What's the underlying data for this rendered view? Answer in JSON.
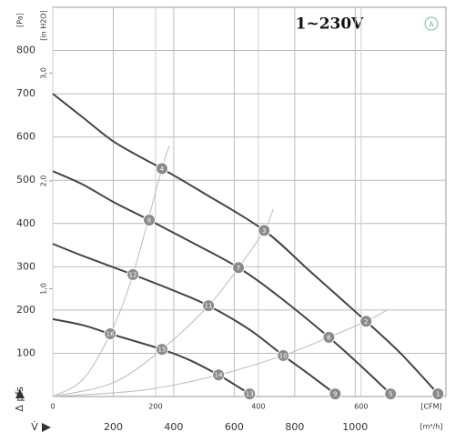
{
  "chart_data": {
    "type": "line",
    "title": "1~230V",
    "badge": "A",
    "y_unit": "[Pa]",
    "y2_unit": "[in H2O]",
    "y_label": "Δ pfs",
    "x_label": "V̇",
    "x_unit": "[m³/h]",
    "x2_unit": "[CFM]",
    "xlim": [
      0,
      1300
    ],
    "xticks": [
      200,
      400,
      600,
      800,
      1000
    ],
    "x2lim": [
      0,
      765
    ],
    "x2ticks": [
      0,
      200,
      400,
      600
    ],
    "ylim": [
      0,
      900
    ],
    "yticks": [
      100,
      200,
      300,
      400,
      500,
      600,
      700,
      800
    ],
    "y2lim": [
      0,
      3.61
    ],
    "y2ticks": [
      {
        "value": 1,
        "label": "1,0"
      },
      {
        "value": 2,
        "label": "2,0"
      },
      {
        "value": 3,
        "label": "3,0"
      }
    ],
    "grid": true,
    "series": [
      {
        "color": "#444444",
        "x": [
          0,
          100,
          200,
          300,
          361,
          500,
          699,
          850,
          1036,
          1150,
          1274
        ],
        "values": [
          700,
          645,
          590,
          550,
          527,
          470,
          384,
          290,
          174,
          100,
          6
        ]
      },
      {
        "color": "#444444",
        "x": [
          0,
          100,
          200,
          319,
          450,
          614,
          750,
          913,
          1020,
          1117
        ],
        "values": [
          521,
          490,
          450,
          408,
          360,
          298,
          230,
          137,
          70,
          6
        ]
      },
      {
        "color": "#444444",
        "x": [
          0,
          100,
          265,
          400,
          515,
          650,
          762,
          850,
          934
        ],
        "values": [
          353,
          325,
          282,
          245,
          210,
          155,
          95,
          50,
          6
        ]
      },
      {
        "color": "#444444",
        "x": [
          0,
          100,
          190,
          361,
          450,
          548,
          600,
          651
        ],
        "values": [
          179,
          165,
          145,
          109,
          85,
          50,
          28,
          6
        ]
      },
      {
        "color": "#bbbbbb",
        "x": [
          0,
          100,
          190,
          265,
          361,
          386
        ],
        "values": [
          0,
          40,
          145,
          282,
          527,
          580
        ]
      },
      {
        "color": "#bbbbbb",
        "x": [
          0,
          200,
          361,
          515,
          614,
          699,
          729
        ],
        "values": [
          0,
          32,
          109,
          210,
          298,
          384,
          433
        ]
      },
      {
        "color": "#bbbbbb",
        "x": [
          0,
          300,
          548,
          762,
          913,
          1036,
          1105
        ],
        "values": [
          0,
          15,
          50,
          95,
          137,
          174,
          200
        ]
      }
    ],
    "points": [
      {
        "label": 1,
        "x": 1274,
        "y": 6
      },
      {
        "label": 2,
        "x": 1036,
        "y": 174
      },
      {
        "label": 3,
        "x": 699,
        "y": 384
      },
      {
        "label": 4,
        "x": 361,
        "y": 527
      },
      {
        "label": 5,
        "x": 1117,
        "y": 6
      },
      {
        "label": 6,
        "x": 913,
        "y": 137
      },
      {
        "label": 7,
        "x": 614,
        "y": 298
      },
      {
        "label": 8,
        "x": 319,
        "y": 408
      },
      {
        "label": 9,
        "x": 934,
        "y": 6
      },
      {
        "label": 10,
        "x": 762,
        "y": 95
      },
      {
        "label": 11,
        "x": 515,
        "y": 210
      },
      {
        "label": 12,
        "x": 265,
        "y": 282
      },
      {
        "label": 13,
        "x": 651,
        "y": 6
      },
      {
        "label": 14,
        "x": 548,
        "y": 50
      },
      {
        "label": 15,
        "x": 361,
        "y": 109
      },
      {
        "label": 16,
        "x": 190,
        "y": 145
      }
    ]
  }
}
